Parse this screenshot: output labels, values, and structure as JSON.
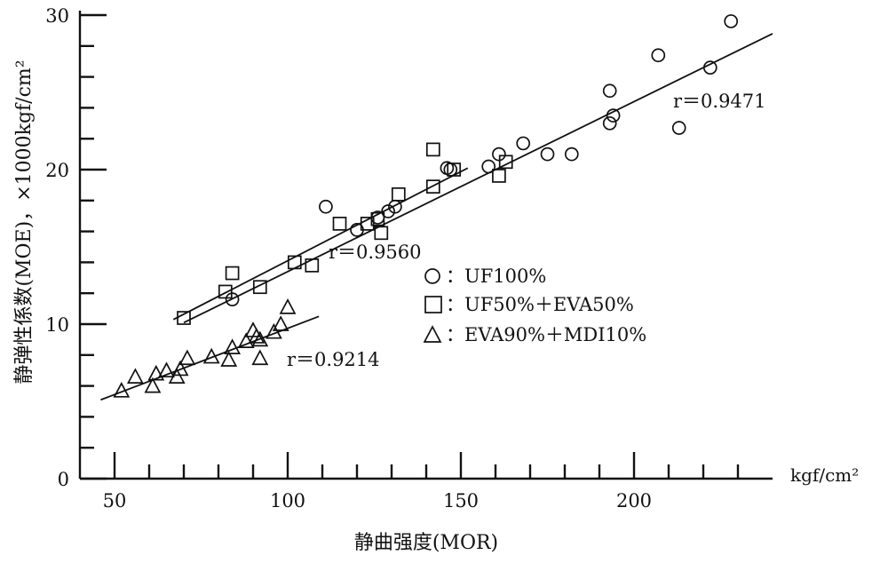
{
  "chart_data": {
    "type": "scatter",
    "xlabel": "静曲强度(MOR)",
    "ylabel": "静弹性係数(MOE)，×1000kgf/cm²",
    "x_unit": "kgf/cm²",
    "xlim": [
      40,
      240
    ],
    "ylim": [
      0,
      30
    ],
    "x_ticks": [
      50,
      100,
      150,
      200
    ],
    "y_ticks": [
      0,
      10,
      20,
      30
    ],
    "grid": false,
    "legend_position": "center-right",
    "series": [
      {
        "name": "：UF100%",
        "marker": "circle",
        "r_label": "r＝0.9471",
        "fit_x": [
          70,
          240
        ],
        "fit_y": [
          10.1,
          28.8
        ],
        "points": [
          {
            "x": 84,
            "y": 11.6
          },
          {
            "x": 111,
            "y": 17.6
          },
          {
            "x": 120,
            "y": 16.1
          },
          {
            "x": 126,
            "y": 16.9
          },
          {
            "x": 129,
            "y": 17.3
          },
          {
            "x": 131,
            "y": 17.6
          },
          {
            "x": 146,
            "y": 20.1
          },
          {
            "x": 147,
            "y": 20.0
          },
          {
            "x": 158,
            "y": 20.2
          },
          {
            "x": 161,
            "y": 21.0
          },
          {
            "x": 168,
            "y": 21.7
          },
          {
            "x": 175,
            "y": 21.0
          },
          {
            "x": 182,
            "y": 21.0
          },
          {
            "x": 193,
            "y": 23.0
          },
          {
            "x": 194,
            "y": 23.5
          },
          {
            "x": 193,
            "y": 25.1
          },
          {
            "x": 207,
            "y": 27.4
          },
          {
            "x": 213,
            "y": 22.7
          },
          {
            "x": 222,
            "y": 26.6
          },
          {
            "x": 228,
            "y": 29.6
          }
        ]
      },
      {
        "name": "：UF50%＋EVA50%",
        "marker": "square",
        "r_label": "r＝0.9560",
        "fit_x": [
          67,
          152
        ],
        "fit_y": [
          10.3,
          20.1
        ],
        "points": [
          {
            "x": 70,
            "y": 10.4
          },
          {
            "x": 82,
            "y": 12.1
          },
          {
            "x": 84,
            "y": 13.3
          },
          {
            "x": 92,
            "y": 12.4
          },
          {
            "x": 102,
            "y": 14.0
          },
          {
            "x": 107,
            "y": 13.8
          },
          {
            "x": 115,
            "y": 16.5
          },
          {
            "x": 123,
            "y": 16.5
          },
          {
            "x": 126,
            "y": 16.8
          },
          {
            "x": 127,
            "y": 15.9
          },
          {
            "x": 132,
            "y": 18.4
          },
          {
            "x": 142,
            "y": 18.9
          },
          {
            "x": 142,
            "y": 21.3
          },
          {
            "x": 148,
            "y": 20.0
          },
          {
            "x": 161,
            "y": 19.6
          },
          {
            "x": 163,
            "y": 20.5
          }
        ]
      },
      {
        "name": "：EVA90%＋MDI10%",
        "marker": "triangle",
        "r_label": "r＝0.9214",
        "fit_x": [
          46,
          109
        ],
        "fit_y": [
          5.1,
          10.5
        ],
        "points": [
          {
            "x": 52,
            "y": 5.7
          },
          {
            "x": 56,
            "y": 6.6
          },
          {
            "x": 61,
            "y": 6.0
          },
          {
            "x": 62,
            "y": 6.8
          },
          {
            "x": 65,
            "y": 7.0
          },
          {
            "x": 68,
            "y": 6.6
          },
          {
            "x": 69,
            "y": 7.1
          },
          {
            "x": 71,
            "y": 7.8
          },
          {
            "x": 78,
            "y": 7.9
          },
          {
            "x": 83,
            "y": 7.7
          },
          {
            "x": 84,
            "y": 8.5
          },
          {
            "x": 88,
            "y": 8.9
          },
          {
            "x": 90,
            "y": 9.6
          },
          {
            "x": 91,
            "y": 9.2
          },
          {
            "x": 92,
            "y": 7.8
          },
          {
            "x": 92,
            "y": 9.0
          },
          {
            "x": 96,
            "y": 9.5
          },
          {
            "x": 98,
            "y": 10.0
          },
          {
            "x": 100,
            "y": 11.1
          }
        ]
      }
    ]
  }
}
